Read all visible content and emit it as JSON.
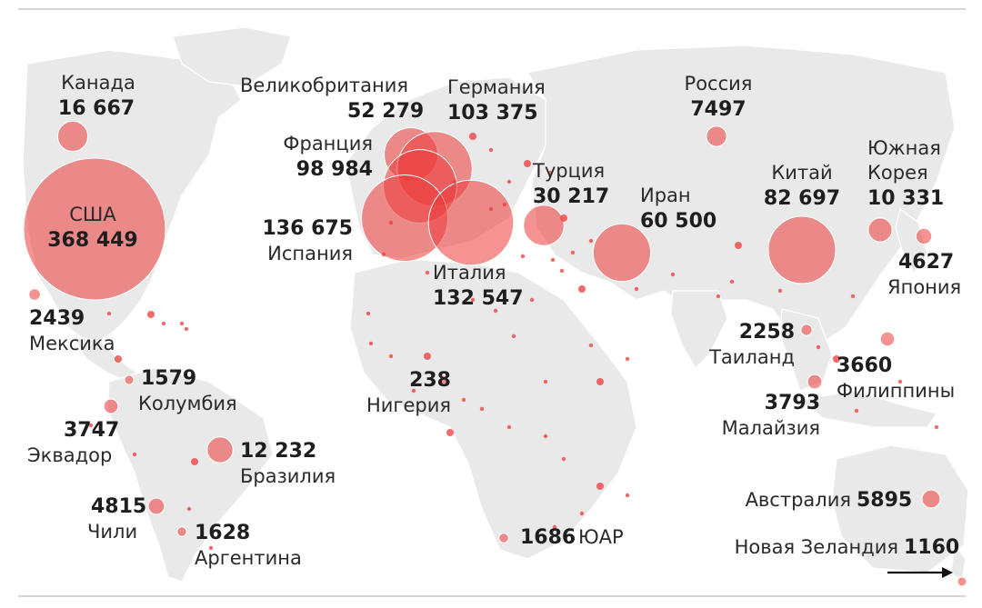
{
  "legend": {
    "note": ""
  },
  "colors": {
    "bubble": "#ec3a3a",
    "land": "#e9e9e9",
    "text": "#1e1e1e"
  },
  "icons": {
    "scroll": "arrow-right-icon"
  },
  "countries": [
    {
      "id": "usa",
      "name": "США",
      "value": "368 449",
      "cases": 368449
    },
    {
      "id": "canada",
      "name": "Канада",
      "value": "16 667",
      "cases": 16667
    },
    {
      "id": "mexico",
      "name": "Мексика",
      "value": "2439",
      "cases": 2439
    },
    {
      "id": "colombia",
      "name": "Колумбия",
      "value": "1579",
      "cases": 1579
    },
    {
      "id": "ecuador",
      "name": "Эквадор",
      "value": "3747",
      "cases": 3747
    },
    {
      "id": "brazil",
      "name": "Бразилия",
      "value": "12 232",
      "cases": 12232
    },
    {
      "id": "chile",
      "name": "Чили",
      "value": "4815",
      "cases": 4815
    },
    {
      "id": "argentina",
      "name": "Аргентина",
      "value": "1628",
      "cases": 1628
    },
    {
      "id": "uk",
      "name": "Великобритания",
      "value": "52 279",
      "cases": 52279
    },
    {
      "id": "germany",
      "name": "Германия",
      "value": "103 375",
      "cases": 103375
    },
    {
      "id": "france",
      "name": "Франция",
      "value": "98 984",
      "cases": 98984
    },
    {
      "id": "spain",
      "name": "Испания",
      "value": "136 675",
      "cases": 136675
    },
    {
      "id": "italy",
      "name": "Италия",
      "value": "132 547",
      "cases": 132547
    },
    {
      "id": "turkey",
      "name": "Турция",
      "value": "30 217",
      "cases": 30217
    },
    {
      "id": "iran",
      "name": "Иран",
      "value": "60 500",
      "cases": 60500
    },
    {
      "id": "russia",
      "name": "Россия",
      "value": "7497",
      "cases": 7497
    },
    {
      "id": "china",
      "name": "Китай",
      "value": "82 697",
      "cases": 82697
    },
    {
      "id": "south-korea",
      "name": "Южная Корея",
      "name_lines": [
        "Южная",
        "Корея"
      ],
      "value": "10 331",
      "cases": 10331
    },
    {
      "id": "japan",
      "name": "Япония",
      "value": "4627",
      "cases": 4627
    },
    {
      "id": "thailand",
      "name": "Таиланд",
      "value": "2258",
      "cases": 2258
    },
    {
      "id": "philippines",
      "name": "Филиппины",
      "value": "3660",
      "cases": 3660
    },
    {
      "id": "malaysia",
      "name": "Малайзия",
      "value": "3793",
      "cases": 3793
    },
    {
      "id": "nigeria",
      "name": "Нигерия",
      "value": "238",
      "cases": 238
    },
    {
      "id": "south-africa",
      "name": "ЮАР",
      "value": "1686",
      "cases": 1686
    },
    {
      "id": "australia",
      "name": "Австралия",
      "value": "5895",
      "cases": 5895
    },
    {
      "id": "new-zealand",
      "name": "Новая Зеландия",
      "value": "1160",
      "cases": 1160
    }
  ]
}
